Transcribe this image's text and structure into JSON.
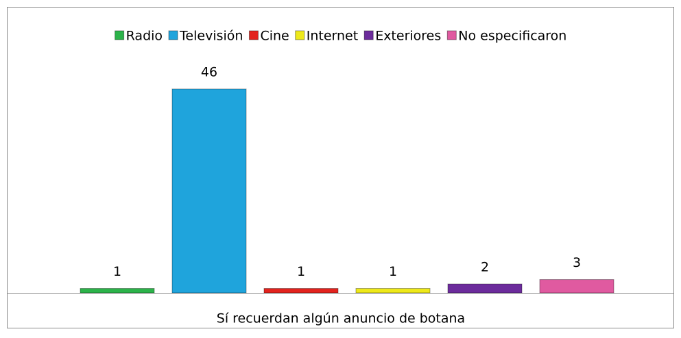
{
  "chart_data": {
    "type": "bar",
    "categories": [
      "Sí recuerdan algún anuncio de botana"
    ],
    "series": [
      {
        "name": "Radio",
        "color": "#2cb34a",
        "values": [
          1
        ]
      },
      {
        "name": "Televisión",
        "color": "#1fa4dc",
        "values": [
          46
        ]
      },
      {
        "name": "Cine",
        "color": "#e3231e",
        "values": [
          1
        ]
      },
      {
        "name": "Internet",
        "color": "#eee91a",
        "values": [
          1
        ]
      },
      {
        "name": "Exteriores",
        "color": "#6c2c9c",
        "values": [
          2
        ]
      },
      {
        "name": "No especificaron",
        "color": "#e05aa0",
        "values": [
          3
        ]
      }
    ],
    "legend": "top"
  }
}
